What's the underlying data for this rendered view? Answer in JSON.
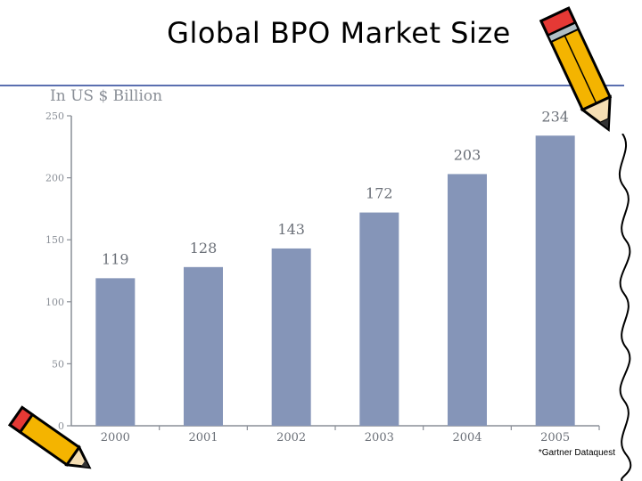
{
  "slide": {
    "title": "Global BPO Market Size",
    "unit_label": "In US $ Billion",
    "source": "*Gartner Dataquest"
  },
  "chart_data": {
    "type": "bar",
    "categories": [
      "2000",
      "2001",
      "2002",
      "2003",
      "2004",
      "2005"
    ],
    "values": [
      119,
      128,
      143,
      172,
      203,
      234
    ],
    "data_labels": [
      "119",
      "128",
      "143",
      "172",
      "203",
      "234"
    ],
    "title": "",
    "xlabel": "",
    "ylabel": "In US $ Billion",
    "ylim": [
      0,
      250
    ],
    "yticks": [
      0,
      50,
      100,
      150,
      200,
      250
    ],
    "grid": false,
    "legend": "none",
    "bar_color": "#8595b8",
    "axis_color": "#8a8f97"
  },
  "decorations": {
    "top_right": "pencil-icon",
    "right_edge": "squiggle-line-icon",
    "bottom_left": "pencil-icon",
    "rule_color": "#5a6fb0"
  }
}
